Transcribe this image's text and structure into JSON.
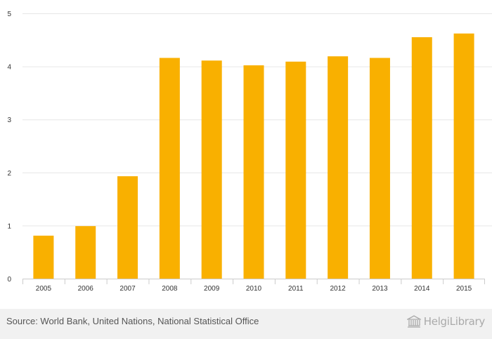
{
  "chart_data": {
    "type": "bar",
    "categories": [
      "2005",
      "2006",
      "2007",
      "2008",
      "2009",
      "2010",
      "2011",
      "2012",
      "2013",
      "2014",
      "2015"
    ],
    "values": [
      0.81,
      0.99,
      1.93,
      4.16,
      4.11,
      4.02,
      4.09,
      4.19,
      4.16,
      4.55,
      4.62
    ],
    "ylim": [
      0,
      5
    ],
    "yticks": [
      "0",
      "1",
      "2",
      "3",
      "4",
      "5"
    ],
    "title": "",
    "xlabel": "",
    "ylabel": "",
    "grid": true,
    "bar_color": "#f9b000"
  },
  "footer": {
    "source": "Source: World Bank, United Nations, National Statistical Office",
    "brand": "HelgiLibrary",
    "brand_icon": "library-building-icon"
  }
}
